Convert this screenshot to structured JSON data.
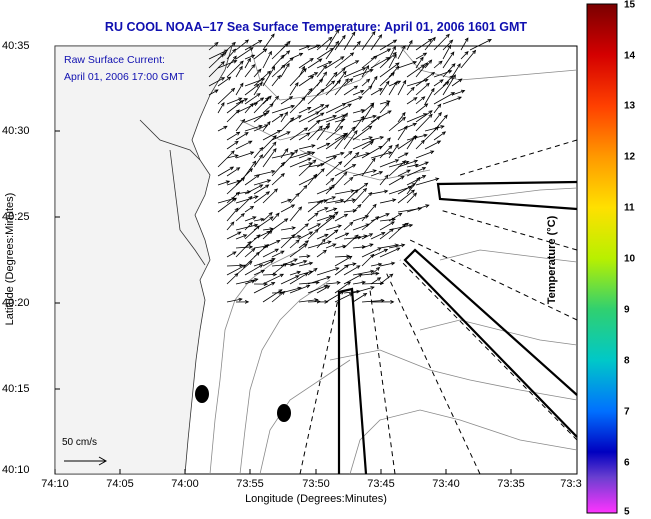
{
  "title": "RU COOL  NOAA–17  Sea Surface Temperature:  April 01, 2006 1601 GMT",
  "note_line1": "Raw Surface Current:",
  "note_line2": "April 01, 2006 17:00 GMT",
  "scale_label": "50 cm/s",
  "xlabel": "Longitude (Degrees:Minutes)",
  "ylabel": "Latitude (Degrees:Minutes)",
  "x_ticks": [
    "74:10",
    "74:05",
    "74:00",
    "73:55",
    "73:50",
    "73:45",
    "73:40",
    "73:35",
    "73:3"
  ],
  "y_ticks": [
    "40:35",
    "40:30",
    "40:25",
    "40:20",
    "40:15",
    "40:10"
  ],
  "colorbar": {
    "title": "Temperature (°C)",
    "ticks": [
      "15",
      "14",
      "13",
      "12",
      "11",
      "10",
      "9",
      "8",
      "7",
      "6",
      "5"
    ],
    "colors": [
      "#7a0000",
      "#d40000",
      "#ff4000",
      "#ff9900",
      "#ffe000",
      "#b8f000",
      "#30d070",
      "#00c8c8",
      "#0070ff",
      "#0000c0",
      "#6a3fd0",
      "#ff33ff"
    ]
  },
  "colors": {
    "title": "#1010b0",
    "land": "#f4f4f4",
    "contour": "#8a8a8a"
  }
}
